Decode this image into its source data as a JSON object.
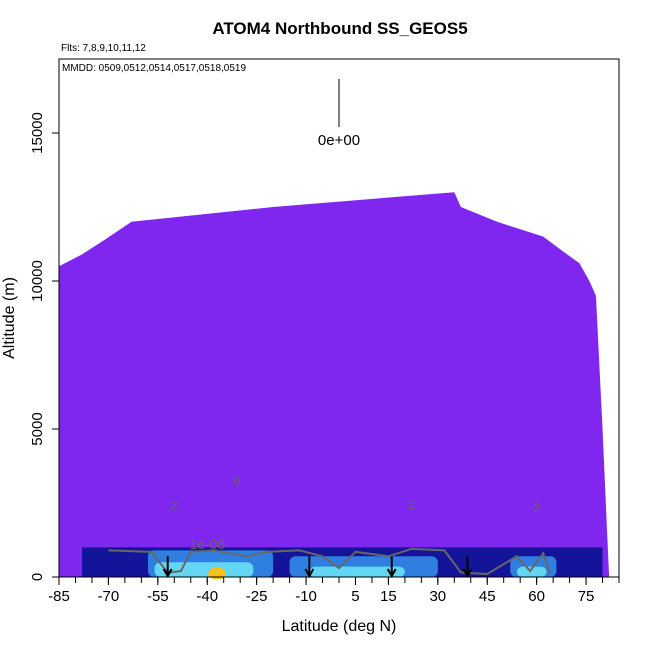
{
  "chart_data": {
    "type": "heatmap",
    "title": "ATOM4 Northbound SS_GEOS5",
    "subtitle": "Flts: 7,8,9,10,11,12",
    "note": "MMDD: 0509,0512,0514,0517,0518,0519",
    "xlabel": "Latitude (deg N)",
    "ylabel": "Altitude (m)",
    "xlim": [
      -85,
      85
    ],
    "ylim": [
      0,
      17500
    ],
    "xticks": [
      -85,
      -70,
      -55,
      -40,
      -25,
      -10,
      5,
      15,
      30,
      45,
      60,
      75
    ],
    "xtick_labels": [
      "-85",
      "-70",
      "-55",
      "-40",
      "-25",
      "-10",
      "5",
      "15",
      "30",
      "45",
      "60",
      "75"
    ],
    "yticks": [
      0,
      5000,
      10000,
      15000
    ],
    "ytick_labels": [
      "0",
      "5000",
      "10000",
      "15000"
    ],
    "scale_annotation": "0e+00",
    "contour_labels": [
      "1e-08",
      "0",
      "2",
      "2",
      "2"
    ],
    "colors": {
      "background_fill": "#7f27ef",
      "low_level_dark": "#14149a",
      "low_level_mid": "#2f7fe0",
      "low_level_light": "#62d6f2",
      "hotspot": "#f7c21e",
      "contour": "#666666"
    },
    "top_profile": [
      {
        "lat": -85,
        "alt": 10500
      },
      {
        "lat": -78,
        "alt": 10900
      },
      {
        "lat": -71,
        "alt": 11400
      },
      {
        "lat": -63,
        "alt": 12000
      },
      {
        "lat": -20,
        "alt": 12500
      },
      {
        "lat": 35,
        "alt": 13000
      },
      {
        "lat": 37,
        "alt": 12500
      },
      {
        "lat": 48,
        "alt": 12000
      },
      {
        "lat": 62,
        "alt": 11500
      },
      {
        "lat": 68,
        "alt": 11000
      },
      {
        "lat": 73,
        "alt": 10600
      },
      {
        "lat": 76,
        "alt": 10000
      },
      {
        "lat": 78,
        "alt": 9500
      },
      {
        "lat": 80,
        "alt": 5000
      },
      {
        "lat": 82,
        "alt": 0
      }
    ],
    "flight_markers_lat": [
      -52,
      -9,
      16,
      39
    ]
  }
}
